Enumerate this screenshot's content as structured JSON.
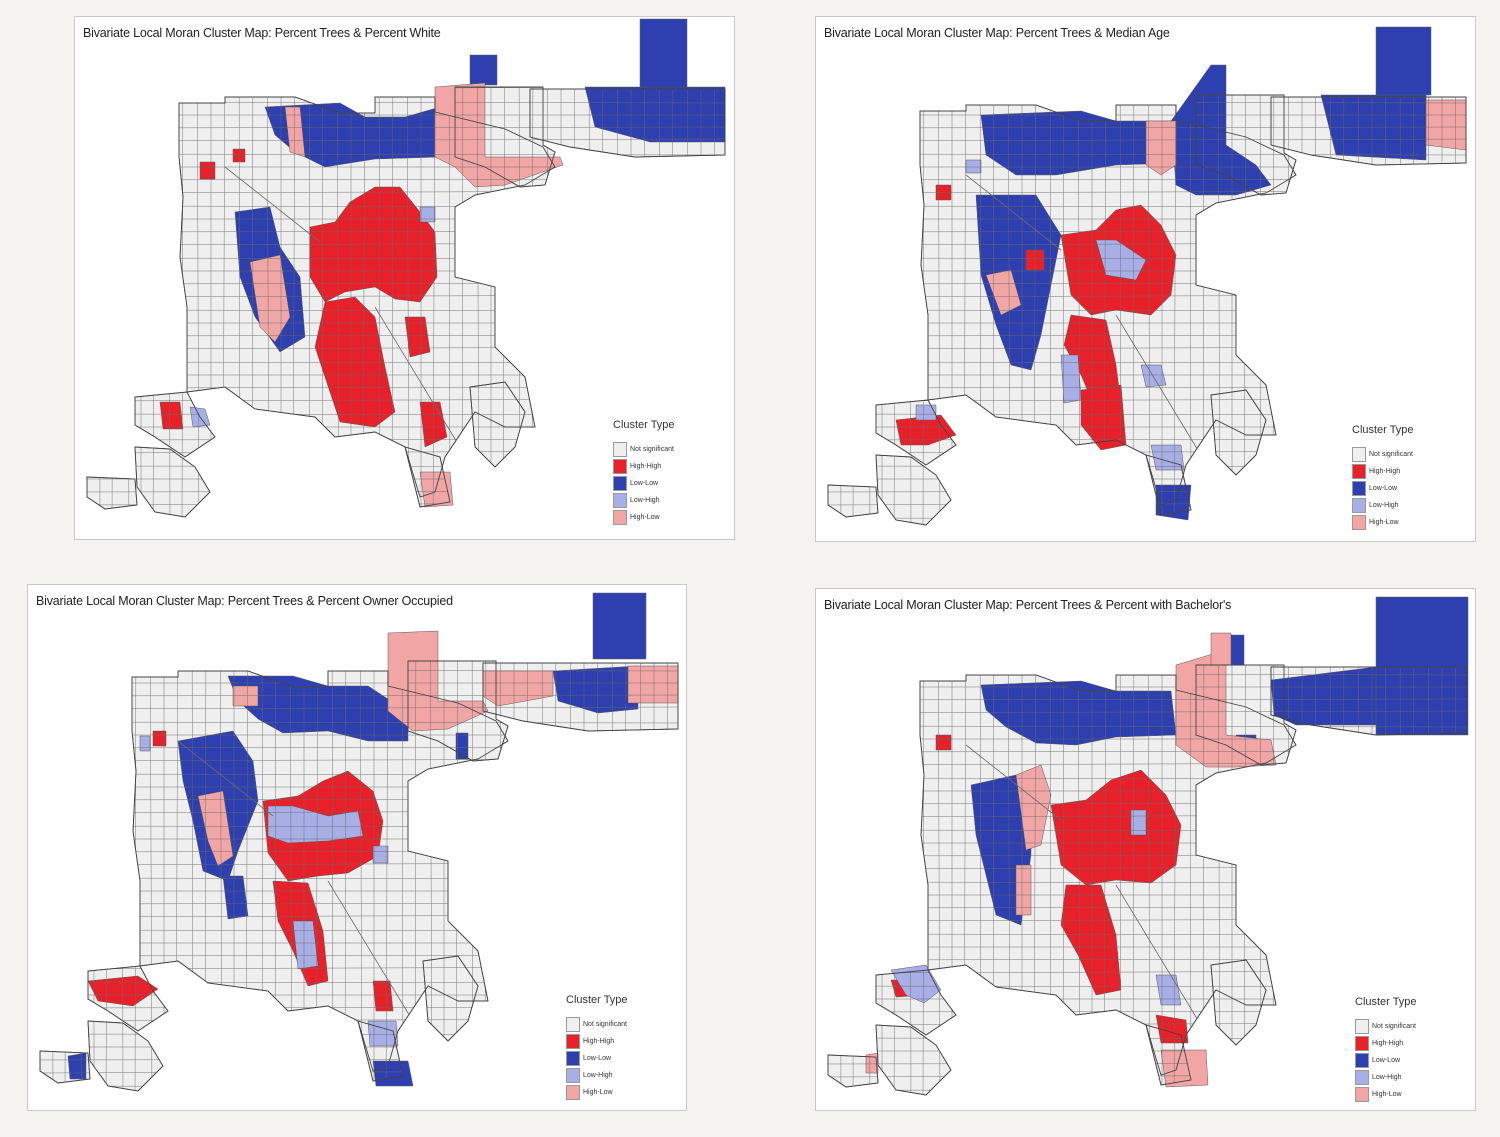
{
  "legend_title": "Cluster Type",
  "categories": [
    {
      "key": "ns",
      "label": "Not significant",
      "color": "#efefef"
    },
    {
      "key": "hh",
      "label": "High-High",
      "color": "#e8202a"
    },
    {
      "key": "ll",
      "label": "Low-Low",
      "color": "#2e3fb0"
    },
    {
      "key": "lh",
      "label": "Low-High",
      "color": "#a8aee6"
    },
    {
      "key": "hl",
      "label": "High-Low",
      "color": "#f2a5a5"
    }
  ],
  "maps": [
    {
      "title": "Bivariate Local Moran Cluster Map: Percent Trees & Percent White"
    },
    {
      "title": "Bivariate Local Moran Cluster Map: Percent Trees & Median Age"
    },
    {
      "title": "Bivariate Local Moran Cluster Map: Percent Trees & Percent Owner Occupied"
    },
    {
      "title": "Bivariate Local Moran Cluster Map: Percent Trees & Percent with Bachelor's"
    }
  ]
}
